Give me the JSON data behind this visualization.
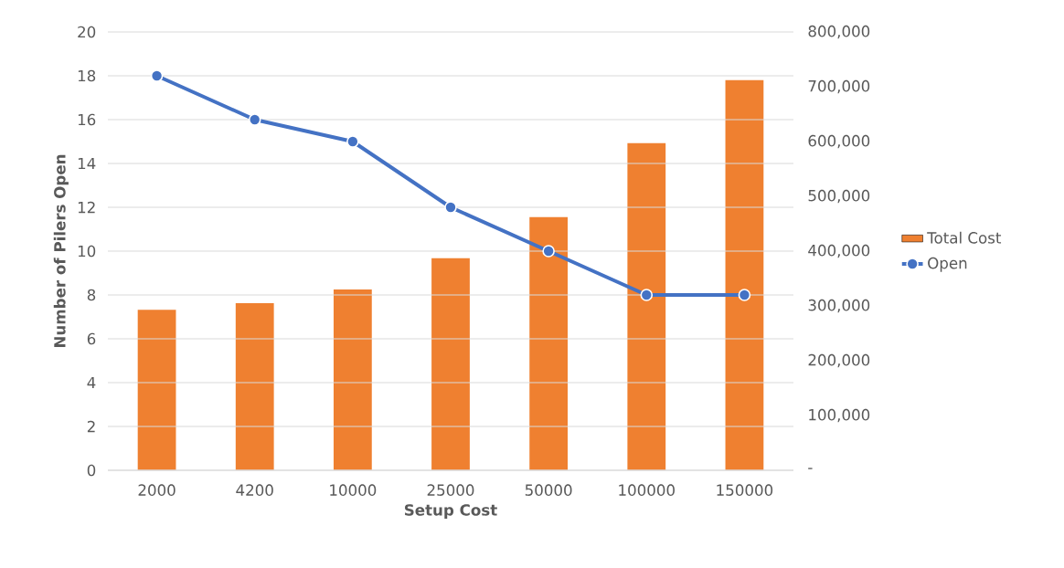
{
  "chart_data": {
    "type": "bar",
    "xlabel": "Setup Cost",
    "ylabel": "Number of Pilers Open",
    "categories": [
      "2000",
      "4200",
      "10000",
      "25000",
      "50000",
      "100000",
      "150000"
    ],
    "series": [
      {
        "name": "Total Cost",
        "axis": "y2",
        "color": "#ef8030",
        "values": [
          293000,
          305000,
          330000,
          387000,
          462000,
          597000,
          712000
        ]
      },
      {
        "name": "Open",
        "type": "line",
        "axis": "y",
        "color": "#4472c4",
        "values": [
          18,
          16,
          15,
          12,
          10,
          8,
          8
        ]
      }
    ],
    "ylim": [
      0,
      20
    ],
    "yticks": [
      0,
      2,
      4,
      6,
      8,
      10,
      12,
      14,
      16,
      18,
      20
    ],
    "y2lim": [
      0,
      800000
    ],
    "y2ticks": [
      {
        "value": 0,
        "label": "-"
      },
      {
        "value": 100000,
        "label": "100,000"
      },
      {
        "value": 200000,
        "label": "200,000"
      },
      {
        "value": 300000,
        "label": "300,000"
      },
      {
        "value": 400000,
        "label": "400,000"
      },
      {
        "value": 500000,
        "label": "500,000"
      },
      {
        "value": 600000,
        "label": "600,000"
      },
      {
        "value": 700000,
        "label": "700,000"
      },
      {
        "value": 800000,
        "label": "800,000"
      }
    ],
    "grid": "y",
    "legend": "right",
    "marker": "circle",
    "line_style": "solid"
  }
}
